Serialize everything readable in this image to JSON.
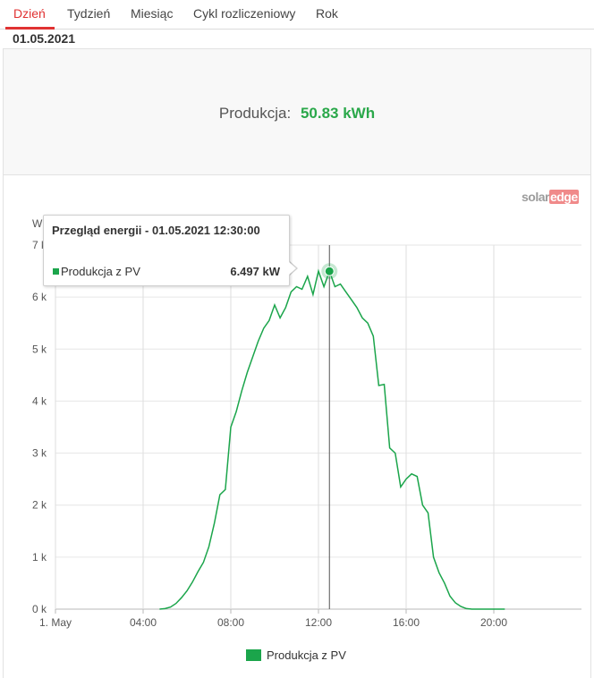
{
  "tabs": [
    {
      "label": "Dzień",
      "active": true
    },
    {
      "label": "Tydzień",
      "active": false
    },
    {
      "label": "Miesiąc",
      "active": false
    },
    {
      "label": "Cykl rozliczeniowy",
      "active": false
    },
    {
      "label": "Rok",
      "active": false
    }
  ],
  "date": "01.05.2021",
  "summary": {
    "label": "Produkcja:",
    "value": "50.83 kWh"
  },
  "logo": {
    "solar": "solar",
    "edge": "edge"
  },
  "tooltip": {
    "title": "Przegląd energii - 01.05.2021 12:30:00",
    "series": "Produkcja z PV",
    "value": "6.497 kW"
  },
  "legend": {
    "label": "Produkcja z PV"
  },
  "colors": {
    "accent": "#e03232",
    "series": "#1ba54b",
    "value": "#2aa84a"
  },
  "chart_data": {
    "type": "line",
    "ylabel": "W",
    "yticks": [
      "0 k",
      "1 k",
      "2 k",
      "3 k",
      "4 k",
      "5 k",
      "6 k",
      "7 k"
    ],
    "ylim": [
      0,
      7000
    ],
    "xlim": [
      0,
      24
    ],
    "xticks": [
      {
        "value": 0,
        "label": "1. May"
      },
      {
        "value": 4,
        "label": "04:00"
      },
      {
        "value": 8,
        "label": "08:00"
      },
      {
        "value": 12,
        "label": "12:00"
      },
      {
        "value": 16,
        "label": "16:00"
      },
      {
        "value": 20,
        "label": "20:00"
      }
    ],
    "grid": true,
    "legend": "bottom",
    "crosshair_x": 12.5,
    "highlight": {
      "x": 12.5,
      "y": 6497
    },
    "series": [
      {
        "name": "Produkcja z PV",
        "x": [
          4.75,
          5.0,
          5.25,
          5.5,
          5.75,
          6.0,
          6.25,
          6.5,
          6.75,
          7.0,
          7.25,
          7.5,
          7.75,
          8.0,
          8.25,
          8.5,
          8.75,
          9.0,
          9.25,
          9.5,
          9.75,
          10.0,
          10.25,
          10.5,
          10.75,
          11.0,
          11.25,
          11.5,
          11.75,
          12.0,
          12.25,
          12.5,
          12.75,
          13.0,
          13.25,
          13.5,
          13.75,
          14.0,
          14.25,
          14.5,
          14.75,
          15.0,
          15.25,
          15.5,
          15.75,
          16.0,
          16.25,
          16.5,
          16.75,
          17.0,
          17.25,
          17.5,
          17.75,
          18.0,
          18.25,
          18.5,
          18.75,
          19.0,
          19.25,
          19.5,
          19.75,
          20.0,
          20.25,
          20.5
        ],
        "y": [
          0,
          10,
          40,
          110,
          220,
          350,
          520,
          720,
          900,
          1200,
          1650,
          2200,
          2300,
          3500,
          3800,
          4200,
          4550,
          4850,
          5150,
          5400,
          5550,
          5850,
          5600,
          5800,
          6100,
          6200,
          6150,
          6400,
          6050,
          6500,
          6200,
          6497,
          6200,
          6250,
          6100,
          5950,
          5800,
          5600,
          5500,
          5250,
          4300,
          4320,
          3100,
          3000,
          2350,
          2500,
          2600,
          2550,
          2000,
          1850,
          1000,
          700,
          500,
          250,
          120,
          50,
          10,
          0,
          0,
          0,
          0,
          0,
          0,
          0
        ]
      }
    ]
  }
}
